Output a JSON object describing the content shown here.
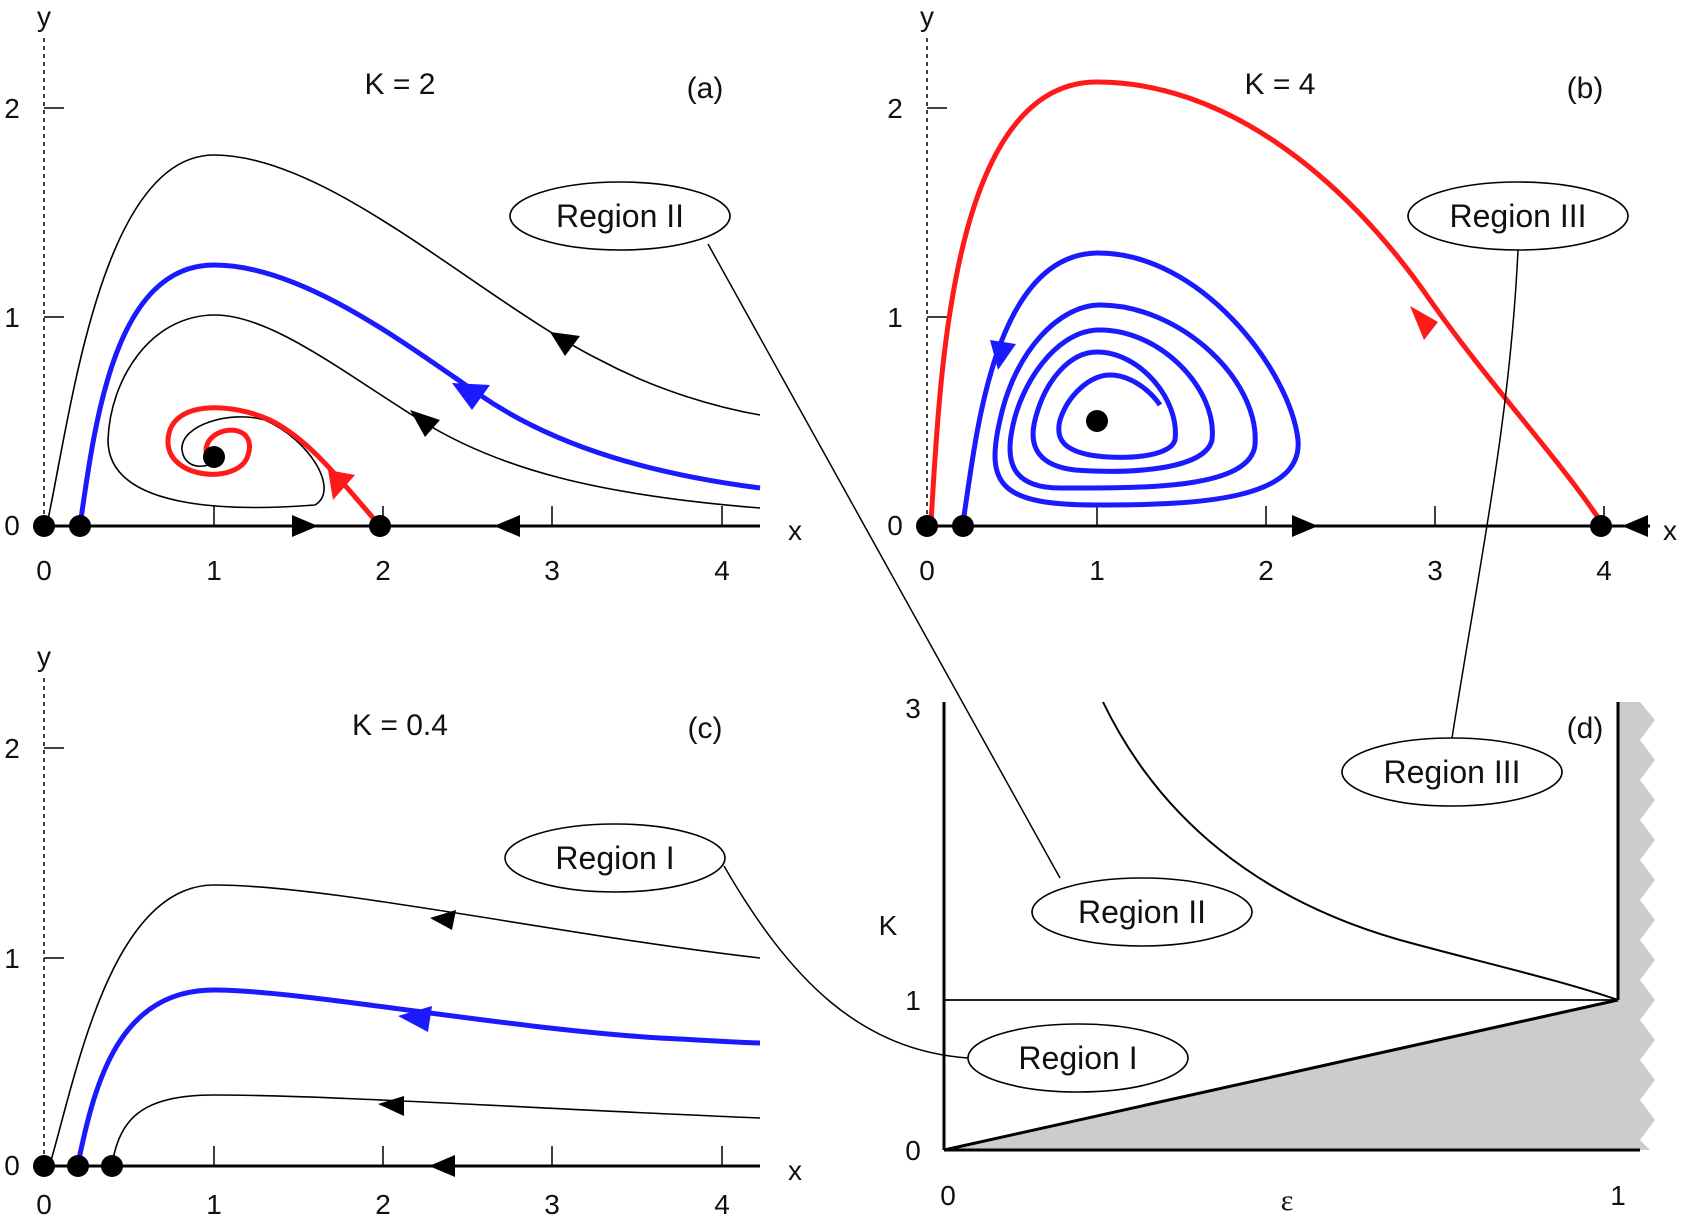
{
  "colors": {
    "thin": "#000000",
    "blue": "#1a1aff",
    "red": "#ff1a1a",
    "shade": "#cccccc"
  },
  "panels": {
    "a": {
      "tag": "(a)",
      "title": "K = 2",
      "xlabel": "x",
      "ylabel": "y",
      "xticks": [
        "0",
        "1",
        "2",
        "3",
        "4"
      ],
      "yticks": [
        "0",
        "1",
        "2"
      ],
      "region": "Region  II"
    },
    "b": {
      "tag": "(b)",
      "title": "K = 4",
      "xlabel": "x",
      "ylabel": "y",
      "xticks": [
        "0",
        "1",
        "2",
        "3",
        "4"
      ],
      "yticks": [
        "0",
        "1",
        "2"
      ],
      "region": "Region  III"
    },
    "c": {
      "tag": "(c)",
      "title": "K = 0.4",
      "xlabel": "x",
      "ylabel": "y",
      "xticks": [
        "0",
        "1",
        "2",
        "3",
        "4"
      ],
      "yticks": [
        "0",
        "1",
        "2"
      ],
      "region": "Region  I"
    },
    "d": {
      "tag": "(d)",
      "xlabel": "ε",
      "ylabel": "K",
      "xticks": [
        "0",
        "1"
      ],
      "yticks": [
        "0",
        "1",
        "3"
      ],
      "regions": [
        "Region  III",
        "Region  II",
        "Region  I"
      ]
    }
  }
}
